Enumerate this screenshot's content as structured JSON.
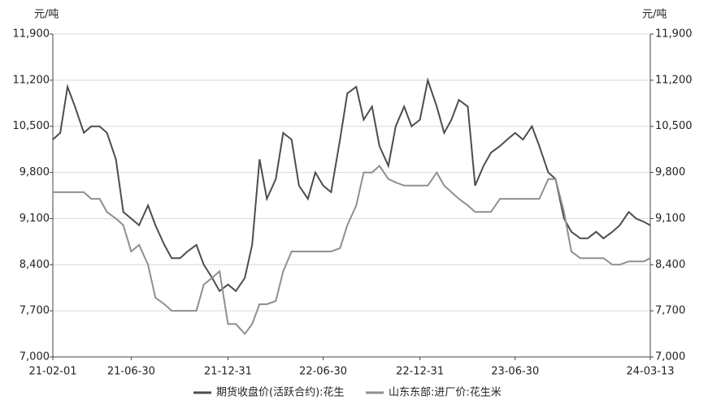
{
  "chart_data": {
    "type": "line",
    "y_label": "元/吨",
    "y2_label": "元/吨",
    "x": [
      "21-02-01",
      "21-02-15",
      "21-03-01",
      "21-03-15",
      "21-04-01",
      "21-04-15",
      "21-05-01",
      "21-05-15",
      "21-06-01",
      "21-06-15",
      "21-06-30",
      "21-07-15",
      "21-08-01",
      "21-08-15",
      "21-09-01",
      "21-09-15",
      "21-10-01",
      "21-10-15",
      "21-11-01",
      "21-11-15",
      "21-12-01",
      "21-12-15",
      "21-12-31",
      "22-01-15",
      "22-02-01",
      "22-02-15",
      "22-03-01",
      "22-03-15",
      "22-04-01",
      "22-04-15",
      "22-05-01",
      "22-05-15",
      "22-06-01",
      "22-06-15",
      "22-06-30",
      "22-07-15",
      "22-08-01",
      "22-08-15",
      "22-09-01",
      "22-09-15",
      "22-10-01",
      "22-10-15",
      "22-11-01",
      "22-11-15",
      "22-12-01",
      "22-12-15",
      "22-12-31",
      "23-01-15",
      "23-02-01",
      "23-02-15",
      "23-03-01",
      "23-03-15",
      "23-04-01",
      "23-04-15",
      "23-05-01",
      "23-05-15",
      "23-06-01",
      "23-06-15",
      "23-06-30",
      "23-07-15",
      "23-08-01",
      "23-08-15",
      "23-09-01",
      "23-09-15",
      "23-10-01",
      "23-10-15",
      "23-11-01",
      "23-11-15",
      "23-12-01",
      "23-12-15",
      "24-01-01",
      "24-01-15",
      "24-02-01",
      "24-02-15",
      "24-03-01",
      "24-03-13"
    ],
    "series": [
      {
        "name": "期货收盘价(活跃合约):花生",
        "color": "#4d4d4d",
        "values": [
          10300,
          10400,
          11100,
          10800,
          10400,
          10500,
          10500,
          10400,
          10000,
          9200,
          9100,
          9000,
          9300,
          9000,
          8700,
          8500,
          8500,
          8600,
          8700,
          8400,
          8200,
          8000,
          8100,
          8000,
          8200,
          8700,
          10000,
          9400,
          9700,
          10400,
          10300,
          9600,
          9400,
          9800,
          9600,
          9500,
          10300,
          11000,
          11100,
          10600,
          10800,
          10200,
          9900,
          10500,
          10800,
          10500,
          10600,
          11200,
          10800,
          10400,
          10600,
          10900,
          10800,
          9600,
          9900,
          10100,
          10200,
          10300,
          10400,
          10300,
          10500,
          10200,
          9800,
          9700,
          9100,
          8900,
          8800,
          8800,
          8900,
          8800,
          8900,
          9000,
          9200,
          9100,
          9050,
          9000
        ]
      },
      {
        "name": "山东东部:进厂价:花生米",
        "color": "#8f8f8f",
        "values": [
          9500,
          9500,
          9500,
          9500,
          9500,
          9400,
          9400,
          9200,
          9100,
          9000,
          8600,
          8700,
          8400,
          7900,
          7800,
          7700,
          7700,
          7700,
          7700,
          8100,
          8200,
          8300,
          7500,
          7500,
          7350,
          7500,
          7800,
          7800,
          7850,
          8300,
          8600,
          8600,
          8600,
          8600,
          8600,
          8600,
          8650,
          9000,
          9300,
          9800,
          9800,
          9900,
          9700,
          9650,
          9600,
          9600,
          9600,
          9600,
          9800,
          9600,
          9500,
          9400,
          9300,
          9200,
          9200,
          9200,
          9400,
          9400,
          9400,
          9400,
          9400,
          9400,
          9700,
          9700,
          9200,
          8600,
          8500,
          8500,
          8500,
          8500,
          8400,
          8400,
          8450,
          8450,
          8450,
          8500
        ]
      }
    ],
    "xlim": [
      "21-02-01",
      "24-03-13"
    ],
    "xticks": [
      "21-02-01",
      "21-06-30",
      "21-12-31",
      "22-06-30",
      "22-12-31",
      "23-06-30",
      "24-03-13"
    ],
    "ylim": [
      7000,
      11900
    ],
    "yticks": [
      {
        "value": 7000,
        "label": "7,000"
      },
      {
        "value": 7700,
        "label": "7,700"
      },
      {
        "value": 8400,
        "label": "8,400"
      },
      {
        "value": 9100,
        "label": "9,100"
      },
      {
        "value": 9800,
        "label": "9,800"
      },
      {
        "value": 10500,
        "label": "10,500"
      },
      {
        "value": 11200,
        "label": "11,200"
      },
      {
        "value": 11900,
        "label": "11,900"
      }
    ],
    "y2lim": [
      7000,
      11900
    ],
    "y2ticks": [
      {
        "value": 7000,
        "label": "7,000"
      },
      {
        "value": 7700,
        "label": "7,700"
      },
      {
        "value": 8400,
        "label": "8,400"
      },
      {
        "value": 9100,
        "label": "9,100"
      },
      {
        "value": 9800,
        "label": "9,800"
      },
      {
        "value": 10500,
        "label": "10,500"
      },
      {
        "value": 11200,
        "label": "11,200"
      },
      {
        "value": 11900,
        "label": "11,900"
      }
    ],
    "grid": true
  }
}
